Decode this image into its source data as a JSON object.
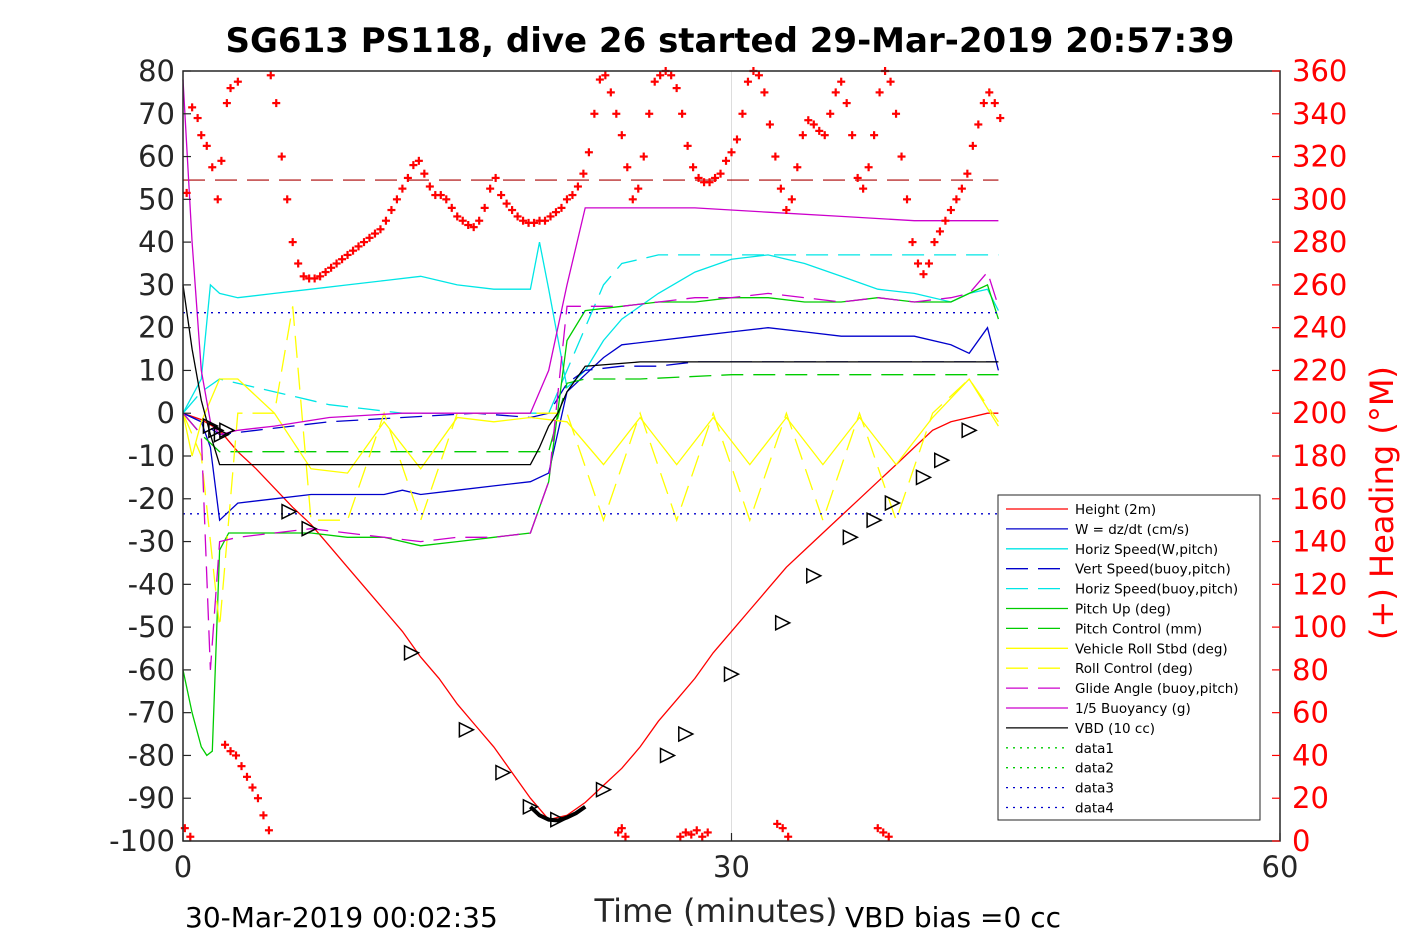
{
  "chart_data": {
    "type": "line",
    "title": "SG613 PS118, dive 26 started 29-Mar-2019 20:57:39",
    "xlabel": "Time (minutes)",
    "ylabel_right": "(+) Heading (°M)",
    "xlim": [
      0,
      60
    ],
    "ylim": [
      -100,
      80
    ],
    "ylim_right": [
      0,
      360
    ],
    "x_ticks": [
      "0",
      "30",
      "60"
    ],
    "y_ticks": [
      "-100",
      "-90",
      "-80",
      "-70",
      "-60",
      "-50",
      "-40",
      "-30",
      "-20",
      "-10",
      "0",
      "10",
      "20",
      "30",
      "40",
      "50",
      "60",
      "70",
      "80"
    ],
    "y_ticks_right": [
      "0",
      "20",
      "40",
      "60",
      "80",
      "100",
      "120",
      "140",
      "160",
      "180",
      "200",
      "220",
      "240",
      "260",
      "280",
      "300",
      "320",
      "340",
      "360"
    ],
    "grid": "x-only",
    "legend_position": "bottom-right",
    "footer_left": "30-Mar-2019 00:02:35",
    "footer_right": "VBD bias =0 cc",
    "series": [
      {
        "name": "Height (2m)",
        "color": "#ff0000",
        "style": "solid",
        "x": [
          0,
          1,
          2,
          3,
          4,
          5,
          6,
          7,
          8,
          9,
          10,
          11,
          12,
          13,
          14,
          15,
          16,
          17,
          18,
          19,
          20,
          21,
          22,
          23,
          24,
          25,
          26,
          27,
          28,
          29,
          30,
          31,
          32,
          33,
          34,
          35,
          36,
          37,
          38,
          39,
          40,
          41,
          42,
          43,
          44,
          44.6
        ],
        "y": [
          0,
          -1.5,
          -4,
          -9,
          -13,
          -17.5,
          -22,
          -26,
          -31,
          -36,
          -41,
          -46,
          -51,
          -57,
          -62,
          -68,
          -73,
          -78,
          -84,
          -90,
          -95,
          -94,
          -91,
          -87,
          -83,
          -78,
          -72,
          -67,
          -62,
          -56,
          -51,
          -46,
          -41,
          -36,
          -32,
          -28,
          -24,
          -20,
          -16,
          -12,
          -8,
          -4,
          -2,
          -1,
          0,
          0
        ]
      },
      {
        "name": "W = dz/dt (cm/s)",
        "color": "#0000cc",
        "style": "solid",
        "x": [
          0,
          1,
          1.5,
          2,
          3,
          5,
          7,
          9,
          11,
          12,
          13,
          15,
          17,
          19,
          20,
          21,
          22,
          23,
          24,
          26,
          28,
          30,
          32,
          34,
          36,
          38,
          40,
          42,
          43,
          44,
          44.6
        ],
        "y": [
          0,
          -2,
          -8,
          -25,
          -21,
          -20,
          -19,
          -19,
          -19,
          -18,
          -19,
          -18,
          -17,
          -16,
          -14,
          5,
          9,
          13,
          16,
          17,
          18,
          19,
          20,
          19,
          18,
          18,
          18,
          16,
          14,
          20,
          10
        ]
      },
      {
        "name": "Horiz Speed(W,pitch)",
        "color": "#00e6e6",
        "style": "solid",
        "x": [
          0,
          1,
          1.5,
          2,
          3,
          5,
          7,
          9,
          11,
          13,
          15,
          17,
          19,
          19.5,
          20,
          21,
          22,
          23,
          24,
          26,
          28,
          30,
          32,
          34,
          36,
          38,
          40,
          42,
          43,
          44,
          44.6
        ],
        "y": [
          0,
          8,
          30,
          28,
          27,
          28,
          29,
          30,
          31,
          32,
          30,
          29,
          29,
          40,
          29,
          6,
          10,
          17,
          22,
          28,
          33,
          36,
          37,
          35,
          32,
          29,
          28,
          26,
          28,
          29,
          24
        ]
      },
      {
        "name": "Vert Speed(buoy,pitch)",
        "color": "#0000cc",
        "style": "dashed",
        "x": [
          0,
          1,
          2,
          4,
          8,
          12,
          16,
          19,
          20,
          21,
          22,
          24,
          26,
          28,
          30,
          34,
          38,
          42,
          44.6
        ],
        "y": [
          0,
          -2,
          -5,
          -4,
          -2,
          -1,
          0,
          -1,
          0,
          7,
          10,
          11,
          11,
          12,
          12,
          12,
          12,
          12,
          12
        ]
      },
      {
        "name": "Horiz Speed(buoy,pitch)",
        "color": "#00e6e6",
        "style": "dashed",
        "x": [
          0,
          1,
          2,
          4,
          6,
          8,
          10,
          12,
          16,
          19,
          20,
          21,
          22,
          23,
          24,
          26,
          30,
          34,
          38,
          42,
          44.6
        ],
        "y": [
          0,
          5,
          8,
          6,
          4,
          2,
          1,
          0,
          0,
          0,
          0,
          10,
          20,
          30,
          35,
          37,
          37,
          37,
          37,
          37,
          37
        ]
      },
      {
        "name": "Pitch Up (deg)",
        "color": "#00cc00",
        "style": "solid",
        "x": [
          0,
          0.5,
          1,
          1.3,
          1.6,
          2,
          2.5,
          3,
          5,
          7,
          9,
          11,
          13,
          15,
          17,
          19,
          20,
          21,
          22,
          24,
          26,
          28,
          30,
          32,
          34,
          36,
          38,
          40,
          42,
          43,
          44,
          44.6
        ],
        "y": [
          -60,
          -70,
          -78,
          -80,
          -79,
          -32,
          -28,
          -28,
          -28,
          -28,
          -29,
          -29,
          -31,
          -30,
          -29,
          -28,
          -16,
          17,
          24,
          25,
          26,
          26,
          27,
          27,
          26,
          26,
          27,
          26,
          26,
          28,
          30,
          22
        ]
      },
      {
        "name": "Pitch Control (mm)",
        "color": "#00cc00",
        "style": "dashed",
        "x": [
          0,
          1,
          2,
          5,
          10,
          15,
          19,
          20,
          21,
          22,
          25,
          30,
          35,
          40,
          44.6
        ],
        "y": [
          0,
          -5,
          -9,
          -9,
          -9,
          -9,
          -9,
          -9,
          7,
          8,
          8,
          9,
          9,
          9,
          9
        ]
      },
      {
        "name": "Vehicle Roll Stbd (deg)",
        "color": "#ffff00",
        "style": "solid",
        "x": [
          0,
          0.5,
          1,
          2,
          3,
          5,
          7,
          9,
          11,
          13,
          15,
          17,
          19,
          21,
          23,
          25,
          27,
          29,
          31,
          33,
          35,
          37,
          39,
          41,
          43,
          44.6
        ],
        "y": [
          0,
          -10,
          -2,
          8,
          8,
          0,
          -13,
          -14,
          -2,
          -13,
          -1,
          -2,
          -1,
          -2,
          -12,
          -1,
          -12,
          -1,
          -12,
          -1,
          -12,
          -1,
          -12,
          -1,
          8,
          -3
        ]
      },
      {
        "name": "Roll Control (deg)",
        "color": "#ffff00",
        "style": "dashed",
        "x": [
          0,
          1,
          2,
          3,
          5,
          6,
          7,
          9,
          11,
          13,
          15,
          17,
          19,
          21,
          23,
          25,
          27,
          29,
          31,
          33,
          35,
          37,
          39,
          41,
          43,
          44.6
        ],
        "y": [
          0,
          -10,
          -50,
          0,
          0,
          25,
          -25,
          -25,
          0,
          -25,
          0,
          0,
          0,
          0,
          -25,
          0,
          -25,
          0,
          -25,
          0,
          -25,
          0,
          -25,
          0,
          8,
          -2
        ]
      },
      {
        "name": "Glide Angle (buoy,pitch)",
        "color": "#cc00cc",
        "style": "dashed",
        "x": [
          0,
          1,
          1.5,
          2,
          3,
          5,
          7,
          9,
          11,
          13,
          15,
          17,
          19,
          20,
          21,
          22,
          24,
          26,
          28,
          30,
          32,
          34,
          36,
          38,
          40,
          42,
          43,
          44,
          44.6
        ],
        "y": [
          0,
          -5,
          -60,
          -30,
          -29,
          -28,
          -27,
          -28,
          -29,
          -30,
          -29,
          -29,
          -28,
          -16,
          25,
          25,
          25,
          26,
          27,
          27,
          28,
          27,
          26,
          27,
          26,
          27,
          28,
          33,
          25
        ]
      },
      {
        "name": "1/5 Buoyancy (g)",
        "color": "#cc00cc",
        "style": "solid",
        "x": [
          0,
          0.5,
          1,
          1.5,
          2,
          3,
          5,
          8,
          12,
          16,
          19,
          20,
          21,
          22,
          24,
          28,
          32,
          36,
          40,
          44.6
        ],
        "y": [
          78,
          40,
          10,
          -2,
          -5,
          -4,
          -3,
          -1,
          0,
          0,
          0,
          10,
          30,
          48,
          48,
          48,
          47,
          46,
          45,
          45
        ]
      },
      {
        "name": "VBD (10 cc)",
        "color": "#000000",
        "style": "solid",
        "x": [
          0,
          0.5,
          1,
          1.5,
          2,
          3,
          10,
          15,
          19,
          19.5,
          20,
          20.5,
          21,
          22,
          25,
          30,
          35,
          40,
          44.6
        ],
        "y": [
          30,
          15,
          3,
          -5,
          -12,
          -12,
          -12,
          -12,
          -12,
          -8,
          -3,
          0,
          5,
          11,
          12,
          12,
          12,
          12,
          12
        ]
      },
      {
        "name": "data1",
        "color": "#00cc00",
        "style": "dotted",
        "x": [],
        "y": []
      },
      {
        "name": "data2",
        "color": "#00cc00",
        "style": "dotted",
        "x": [],
        "y": []
      },
      {
        "name": "data3",
        "color": "#0000cc",
        "style": "dotted",
        "x": [
          0,
          44.6
        ],
        "y": [
          23.5,
          23.5
        ]
      },
      {
        "name": "data4",
        "color": "#0000cc",
        "style": "dotted",
        "x": [
          0,
          44.6
        ],
        "y": [
          -23.5,
          -23.5
        ]
      }
    ],
    "reference_lines": [
      {
        "axis": "right",
        "value": 309,
        "color": "#aa0000",
        "style": "dashed",
        "x_range": [
          0,
          44.6
        ]
      }
    ],
    "heading": {
      "axis": "right",
      "color": "#ff0000",
      "marker": "+",
      "x": [
        0.2,
        0.5,
        0.8,
        1.0,
        1.3,
        1.6,
        1.9,
        2.1,
        2.4,
        2.6,
        3.0,
        4.8,
        5.1,
        5.4,
        5.7,
        6.0,
        6.3,
        6.6,
        6.9,
        7.2,
        7.5,
        7.8,
        8.1,
        8.4,
        8.7,
        9.0,
        9.3,
        9.6,
        9.9,
        10.2,
        10.5,
        10.8,
        11.1,
        11.4,
        11.7,
        12.0,
        12.3,
        12.6,
        12.9,
        13.2,
        13.5,
        13.8,
        14.1,
        14.4,
        14.7,
        15.0,
        15.3,
        15.6,
        15.9,
        16.2,
        16.5,
        16.8,
        17.1,
        17.4,
        17.7,
        18.0,
        18.3,
        18.6,
        18.9,
        19.2,
        19.5,
        19.8,
        20.1,
        20.4,
        20.7,
        21.0,
        21.3,
        21.6,
        21.9,
        22.2,
        22.5,
        22.8,
        23.1,
        23.4,
        23.7,
        24.0,
        24.3,
        24.6,
        24.9,
        25.2,
        25.5,
        25.8,
        26.1,
        26.4,
        26.7,
        27.0,
        27.3,
        27.6,
        27.9,
        28.2,
        28.5,
        28.8,
        29.1,
        29.4,
        29.7,
        30.0,
        30.3,
        30.6,
        30.9,
        31.2,
        31.5,
        31.8,
        32.1,
        32.4,
        32.7,
        33.0,
        33.3,
        33.6,
        33.9,
        34.2,
        34.5,
        34.8,
        35.1,
        35.4,
        35.7,
        36.0,
        36.3,
        36.6,
        36.9,
        37.2,
        37.5,
        37.8,
        38.1,
        38.4,
        38.7,
        39.0,
        39.3,
        39.6,
        39.9,
        40.2,
        40.5,
        40.8,
        41.1,
        41.4,
        41.7,
        42.0,
        42.3,
        42.6,
        42.9,
        43.2,
        43.5,
        43.8,
        44.1,
        44.4,
        44.7,
        2.3,
        2.6,
        2.9,
        3.2,
        3.5,
        3.8,
        4.1,
        4.4,
        4.7
      ],
      "y": [
        303,
        343,
        338,
        330,
        325,
        315,
        300,
        318,
        345,
        352,
        355,
        358,
        345,
        320,
        300,
        280,
        270,
        264,
        263,
        263,
        264,
        266,
        268,
        270,
        272,
        274,
        276,
        278,
        280,
        282,
        284,
        286,
        290,
        295,
        300,
        305,
        310,
        316,
        318,
        312,
        306,
        302,
        302,
        300,
        296,
        292,
        290,
        288,
        287,
        290,
        296,
        305,
        310,
        302,
        298,
        295,
        292,
        290,
        289,
        289,
        290,
        290,
        292,
        294,
        296,
        300,
        302,
        306,
        312,
        322,
        340,
        356,
        358,
        350,
        340,
        330,
        315,
        300,
        305,
        320,
        340,
        355,
        358,
        360,
        358,
        352,
        340,
        325,
        315,
        310,
        308,
        308,
        310,
        312,
        318,
        322,
        328,
        340,
        355,
        360,
        358,
        350,
        335,
        320,
        305,
        295,
        300,
        315,
        330,
        337,
        335,
        332,
        330,
        340,
        350,
        355,
        345,
        330,
        310,
        305,
        315,
        330,
        350,
        360,
        355,
        340,
        320,
        300,
        280,
        270,
        265,
        270,
        280,
        285,
        290,
        295,
        300,
        305,
        312,
        325,
        335,
        345,
        350,
        345,
        338,
        45,
        42,
        40,
        35,
        30,
        25,
        20,
        12,
        5
      ],
      "x_low": [
        0.1,
        0.4,
        23.8,
        24.0,
        24.2,
        27.2,
        27.5,
        27.8,
        28.1,
        28.4,
        28.7,
        32.5,
        32.8,
        33.1,
        38.0,
        38.3,
        38.6
      ],
      "y_low": [
        6,
        2,
        4,
        6,
        2,
        2,
        4,
        3,
        5,
        2,
        4,
        8,
        6,
        2,
        6,
        4,
        2
      ]
    },
    "triangles": {
      "color": "#000000",
      "x": [
        1.5,
        1.8,
        2.1,
        2.4,
        5.8,
        6.9,
        12.5,
        15.5,
        17.5,
        19.0,
        20.5,
        23.0,
        26.5,
        27.5,
        30.0,
        32.8,
        34.5,
        36.5,
        37.8,
        38.8,
        40.5,
        41.5,
        43.0
      ],
      "y": [
        -3,
        -4,
        -5,
        -4,
        -23,
        -27,
        -56,
        -74,
        -84,
        -92,
        -95,
        -88,
        -80,
        -75,
        -61,
        -49,
        -38,
        -29,
        -25,
        -21,
        -15,
        -11,
        -4
      ]
    },
    "apogee_curve": {
      "color": "#000000",
      "x": [
        19,
        19.5,
        20,
        20.5,
        21,
        21.5,
        22
      ],
      "y": [
        -92,
        -94,
        -95,
        -95.2,
        -94.5,
        -93.5,
        -92
      ]
    }
  }
}
